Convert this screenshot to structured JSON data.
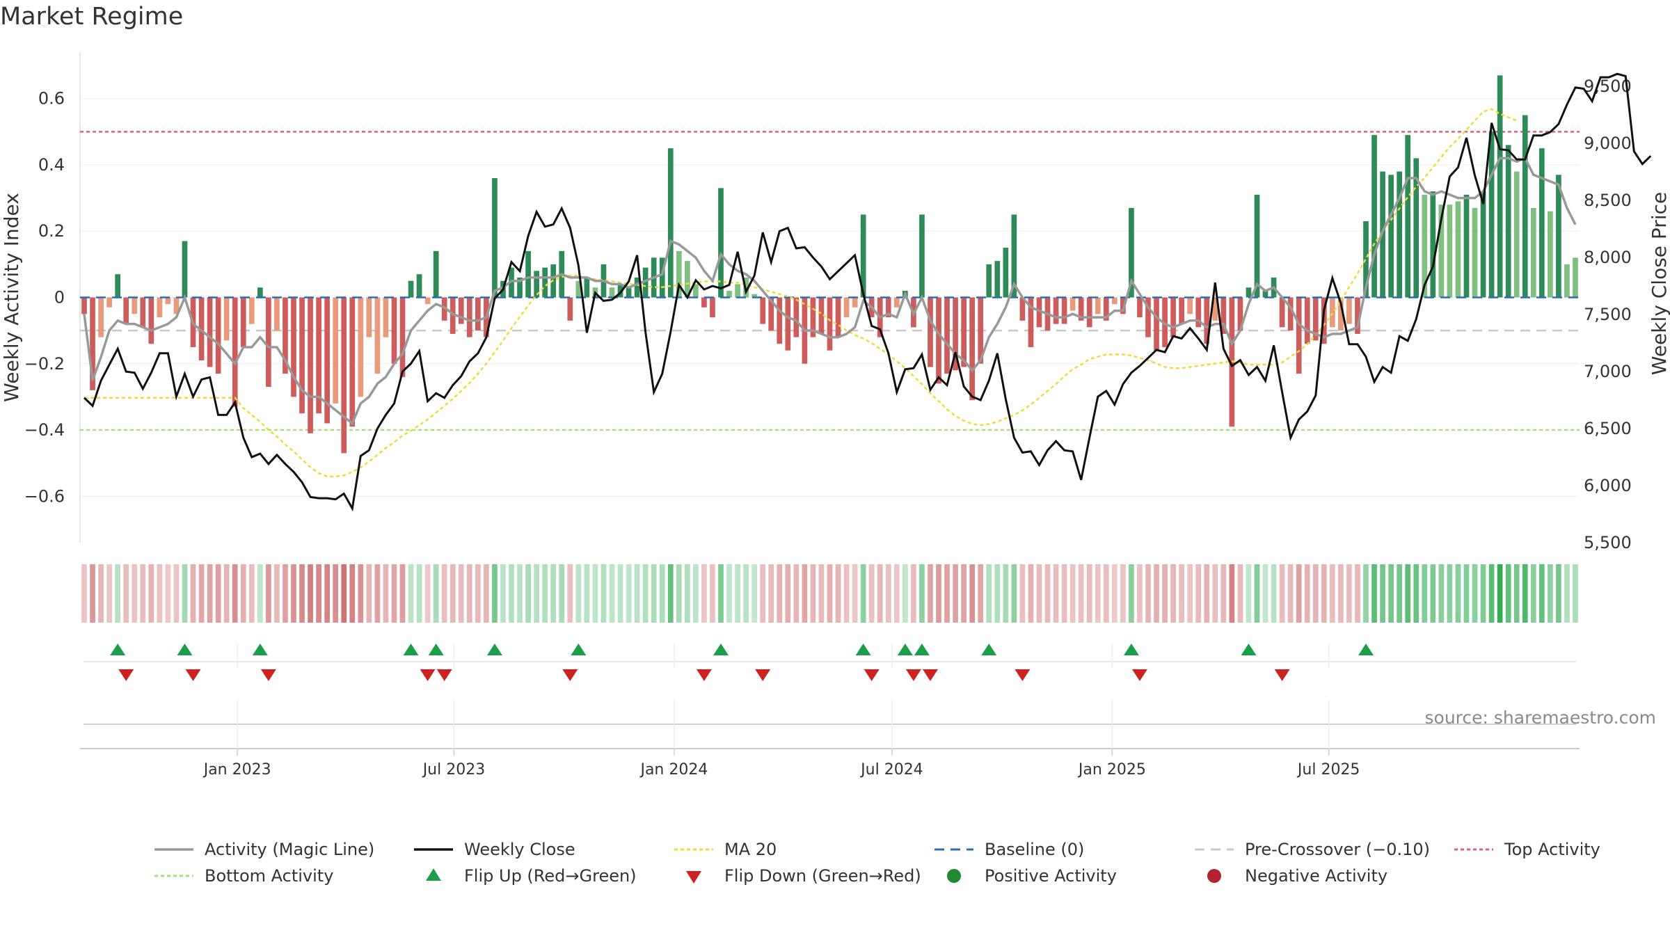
{
  "title": "Market Regime",
  "source_text": "source: sharemaestro.com",
  "colors": {
    "activity_line": "#999999",
    "close_line": "#111111",
    "ma20": "#f2d93a",
    "baseline": "#2a6db5",
    "pre_crossover": "#c8c8c8",
    "top_activity": "#e0607a",
    "bottom_activity": "#a8e07a",
    "pos_strong": "#2e8b57",
    "pos_light": "#7fbf7f",
    "neg_strong": "#cd5c5c",
    "neg_light": "#e89a7a",
    "flip_up": "#1a9e4a",
    "flip_down": "#cc2222",
    "positive_dot": "#1f8a2e",
    "negative_dot": "#b22232"
  },
  "chart_data": {
    "type": "bar",
    "title": "Market Regime",
    "ylabel": "Weekly Activity Index",
    "y2label": "Weekly Close Price",
    "ylim": [
      -0.74,
      0.74
    ],
    "y2lim": [
      5500,
      9800
    ],
    "yticks": [
      -0.6,
      -0.4,
      -0.2,
      0,
      0.2,
      0.4,
      0.6
    ],
    "ytick_labels": [
      "−0.6",
      "−0.4",
      "−0.2",
      "0",
      "0.2",
      "0.4",
      "0.6"
    ],
    "y2ticks": [
      5500,
      6000,
      6500,
      7000,
      7500,
      8000,
      8500,
      9000,
      9500
    ],
    "y2tick_labels": [
      "5,500",
      "6,000",
      "6,500",
      "7,000",
      "7,500",
      "8,000",
      "8,500",
      "9,000",
      "9,500"
    ],
    "xticks": [
      "2023-01-01",
      "2023-07-01",
      "2024-01-01",
      "2024-07-01",
      "2025-01-01",
      "2025-07-01"
    ],
    "xtick_labels": [
      "Jan 2023",
      "Jul 2023",
      "Jan 2024",
      "Jul 2024",
      "Jan 2025",
      "Jul 2025"
    ],
    "x_start": "2022-08-26",
    "x_step_days": 7,
    "reference_lines": {
      "top_activity": 0.5,
      "bottom_activity": -0.4,
      "baseline": 0,
      "pre_crossover": -0.1
    },
    "activity": [
      -0.05,
      -0.28,
      -0.12,
      -0.03,
      0.07,
      -0.08,
      -0.05,
      -0.09,
      -0.14,
      -0.06,
      -0.02,
      -0.05,
      0.17,
      -0.15,
      -0.19,
      -0.21,
      -0.23,
      -0.13,
      -0.33,
      -0.15,
      -0.08,
      0.03,
      -0.27,
      -0.1,
      -0.23,
      -0.3,
      -0.35,
      -0.41,
      -0.35,
      -0.38,
      -0.32,
      -0.47,
      -0.39,
      -0.3,
      -0.12,
      -0.23,
      -0.12,
      -0.2,
      -0.24,
      0.05,
      0.07,
      -0.02,
      0.14,
      -0.07,
      -0.11,
      -0.08,
      -0.12,
      -0.1,
      -0.12,
      0.36,
      0.05,
      0.09,
      0.06,
      0.14,
      0.08,
      0.09,
      0.1,
      0.14,
      -0.07,
      0.05,
      0.06,
      0.03,
      0.1,
      0.03,
      0.04,
      0.03,
      0.06,
      0.09,
      0.12,
      0.12,
      0.45,
      0.14,
      0.11,
      0.04,
      -0.03,
      -0.06,
      0.33,
      0.02,
      0.04,
      0.06,
      0.01,
      -0.08,
      -0.1,
      -0.14,
      -0.16,
      -0.12,
      -0.2,
      -0.12,
      -0.11,
      -0.16,
      -0.12,
      -0.06,
      -0.03,
      0.25,
      -0.06,
      -0.12,
      -0.06,
      -0.03,
      0.02,
      -0.09,
      0.25,
      -0.21,
      -0.26,
      -0.23,
      -0.22,
      -0.21,
      -0.31,
      -0.2,
      0.1,
      0.11,
      0.15,
      0.25,
      -0.07,
      -0.15,
      -0.09,
      -0.1,
      -0.08,
      -0.08,
      -0.04,
      -0.07,
      -0.09,
      -0.05,
      -0.07,
      -0.02,
      -0.05,
      0.27,
      -0.06,
      -0.12,
      -0.16,
      -0.15,
      -0.12,
      -0.08,
      -0.05,
      -0.09,
      -0.14,
      -0.07,
      -0.11,
      -0.39,
      -0.1,
      0.03,
      0.31,
      0.02,
      0.06,
      -0.09,
      -0.1,
      -0.23,
      -0.14,
      -0.13,
      -0.14,
      -0.09,
      -0.1,
      -0.08,
      -0.11,
      0.23,
      0.49,
      0.38,
      0.37,
      0.38,
      0.49,
      0.42,
      0.31,
      0.32,
      0.28,
      0.28,
      0.29,
      0.31,
      0.27,
      0.32,
      0.5,
      0.67,
      0.46,
      0.38,
      0.55,
      0.27,
      0.45,
      0.26,
      0.37,
      0.1,
      0.12
    ],
    "magic_line": [
      -0.05,
      -0.25,
      -0.18,
      -0.1,
      -0.07,
      -0.08,
      -0.08,
      -0.09,
      -0.1,
      -0.09,
      -0.08,
      -0.06,
      0.0,
      -0.08,
      -0.1,
      -0.12,
      -0.14,
      -0.17,
      -0.2,
      -0.15,
      -0.15,
      -0.12,
      -0.15,
      -0.15,
      -0.19,
      -0.24,
      -0.28,
      -0.3,
      -0.3,
      -0.32,
      -0.34,
      -0.36,
      -0.38,
      -0.32,
      -0.3,
      -0.26,
      -0.24,
      -0.2,
      -0.17,
      -0.1,
      -0.07,
      -0.04,
      -0.02,
      -0.03,
      -0.05,
      -0.06,
      -0.07,
      -0.07,
      -0.06,
      0.02,
      0.03,
      0.05,
      0.05,
      0.06,
      0.06,
      0.06,
      0.06,
      0.07,
      0.06,
      0.06,
      0.06,
      0.05,
      0.05,
      0.04,
      0.04,
      0.03,
      0.04,
      0.05,
      0.06,
      0.07,
      0.17,
      0.16,
      0.14,
      0.12,
      0.08,
      0.05,
      0.13,
      0.1,
      0.08,
      0.07,
      0.05,
      0.02,
      -0.01,
      -0.04,
      -0.06,
      -0.07,
      -0.1,
      -0.1,
      -0.11,
      -0.12,
      -0.12,
      -0.11,
      -0.09,
      -0.01,
      -0.03,
      -0.06,
      -0.05,
      -0.06,
      0.01,
      -0.05,
      0.0,
      -0.07,
      -0.11,
      -0.14,
      -0.17,
      -0.19,
      -0.22,
      -0.19,
      -0.12,
      -0.08,
      -0.03,
      0.04,
      0.0,
      -0.03,
      -0.04,
      -0.05,
      -0.06,
      -0.06,
      -0.05,
      -0.06,
      -0.06,
      -0.06,
      -0.06,
      -0.04,
      -0.04,
      0.05,
      0.01,
      -0.03,
      -0.06,
      -0.08,
      -0.09,
      -0.08,
      -0.07,
      -0.07,
      -0.09,
      -0.08,
      -0.08,
      -0.14,
      -0.1,
      -0.02,
      0.04,
      0.02,
      0.03,
      0.0,
      -0.03,
      -0.08,
      -0.1,
      -0.11,
      -0.12,
      -0.11,
      -0.11,
      -0.1,
      -0.09,
      0.03,
      0.13,
      0.2,
      0.25,
      0.3,
      0.36,
      0.36,
      0.32,
      0.31,
      0.32,
      0.31,
      0.3,
      0.3,
      0.3,
      0.32,
      0.37,
      0.42,
      0.42,
      0.41,
      0.42,
      0.37,
      0.36,
      0.35,
      0.34,
      0.27,
      0.22
    ],
    "weekly_close": [
      6770,
      6700,
      6920,
      7060,
      7200,
      7000,
      6990,
      6850,
      6990,
      7160,
      7160,
      6780,
      6980,
      6780,
      6930,
      6950,
      6620,
      6620,
      6730,
      6420,
      6250,
      6280,
      6190,
      6270,
      6190,
      6120,
      6030,
      5900,
      5890,
      5890,
      5880,
      5930,
      5800,
      6260,
      6310,
      6500,
      6620,
      6720,
      7000,
      7070,
      7180,
      6740,
      6810,
      6770,
      6880,
      6960,
      7090,
      7160,
      7300,
      7640,
      7720,
      7960,
      7880,
      8190,
      8400,
      8270,
      8290,
      8430,
      8260,
      7930,
      7340,
      7690,
      7620,
      7630,
      7690,
      7790,
      8020,
      7350,
      6820,
      6980,
      7350,
      7760,
      7650,
      7800,
      7720,
      7750,
      7730,
      7760,
      8050,
      7700,
      7840,
      8220,
      7960,
      8230,
      8260,
      8080,
      8090,
      8000,
      7920,
      7810,
      7880,
      7950,
      8020,
      7680,
      7400,
      7370,
      7160,
      6820,
      7020,
      7030,
      7150,
      6840,
      6950,
      6880,
      7170,
      6870,
      6780,
      6750,
      6920,
      7160,
      6760,
      6420,
      6290,
      6300,
      6180,
      6310,
      6390,
      6310,
      6300,
      6050,
      6420,
      6780,
      6830,
      6710,
      6890,
      6990,
      7050,
      7120,
      7190,
      7170,
      7310,
      7290,
      7380,
      7290,
      7190,
      7780,
      7200,
      7050,
      7100,
      6970,
      7040,
      6920,
      7230,
      6820,
      6420,
      6580,
      6650,
      6790,
      7540,
      7820,
      7600,
      7240,
      7240,
      7130,
      6910,
      7040,
      6990,
      7310,
      7270,
      7460,
      7760,
      7920,
      8340,
      8710,
      8790,
      9050,
      8720,
      8470,
      9180,
      8950,
      8940,
      8860,
      8860,
      9070,
      9070,
      9100,
      9170,
      9340,
      9490,
      9480,
      9370,
      9580,
      9580,
      9610,
      9590,
      8930,
      8820,
      8890
    ],
    "ma20": [
      6770,
      6770,
      6770,
      6770,
      6770,
      6770,
      6770,
      6770,
      6770,
      6770,
      6770,
      6770,
      6770,
      6770,
      6770,
      6770,
      6770,
      6770,
      6770,
      6680,
      6620,
      6560,
      6490,
      6430,
      6360,
      6300,
      6230,
      6160,
      6110,
      6080,
      6080,
      6090,
      6120,
      6160,
      6210,
      6270,
      6330,
      6380,
      6440,
      6480,
      6530,
      6580,
      6640,
      6700,
      6760,
      6830,
      6900,
      6980,
      7070,
      7170,
      7270,
      7380,
      7480,
      7580,
      7670,
      7750,
      7800,
      7830,
      7840,
      7840,
      7820,
      7810,
      7800,
      7790,
      7780,
      7770,
      7760,
      7750,
      7740,
      7740,
      7750,
      7760,
      7770,
      7780,
      7790,
      7790,
      7790,
      7780,
      7780,
      7760,
      7740,
      7720,
      7700,
      7680,
      7660,
      7630,
      7590,
      7550,
      7510,
      7450,
      7410,
      7360,
      7320,
      7290,
      7250,
      7200,
      7150,
      7090,
      7030,
      6960,
      6890,
      6810,
      6740,
      6670,
      6610,
      6570,
      6540,
      6530,
      6540,
      6560,
      6590,
      6620,
      6660,
      6710,
      6770,
      6830,
      6890,
      6960,
      7020,
      7060,
      7110,
      7130,
      7150,
      7150,
      7150,
      7140,
      7120,
      7100,
      7070,
      7040,
      7030,
      7030,
      7040,
      7050,
      7060,
      7070,
      7080,
      7090,
      7080,
      7060,
      7060,
      7060,
      7060,
      7080,
      7130,
      7180,
      7240,
      7320,
      7410,
      7510,
      7620,
      7740,
      7860,
      7990,
      8120,
      8230,
      8330,
      8430,
      8530,
      8620,
      8700,
      8790,
      8880,
      8970,
      9040,
      9120,
      9200,
      9280,
      9300,
      9260,
      9230,
      9200
    ]
  }
}
